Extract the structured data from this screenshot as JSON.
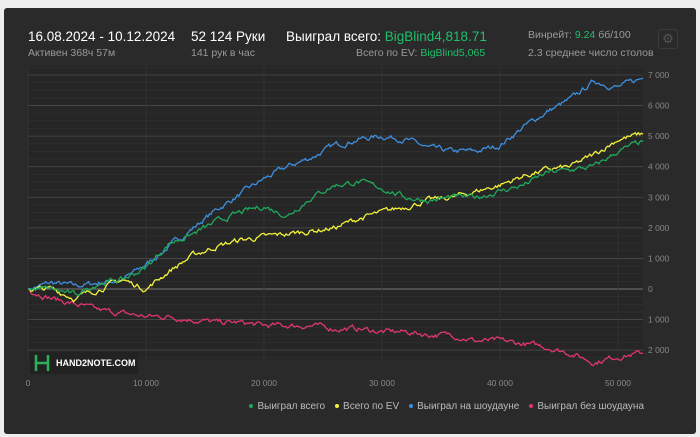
{
  "header": {
    "date_range": "16.08.2024 - 10.12.2024",
    "active": "Активен 368ч 57м",
    "hands": "52 124 Руки",
    "hands_per_hour": "141 рук в час",
    "won_label": "Выиграл всего:",
    "won_value": "BigBlind4,818.71",
    "ev_label": "Всего по EV:",
    "ev_value": "BigBlind5,065",
    "winrate_label": "Винрейт:",
    "winrate_value": "9.24",
    "winrate_unit": "бб/100",
    "tables": "2.3 среднее число столов"
  },
  "logo": "HAND2NOTE.COM",
  "chart_data": {
    "type": "line",
    "x_range": [
      0,
      52124
    ],
    "ylim": [
      -2000,
      7000
    ],
    "x_ticks": [
      {
        "v": 0,
        "l": "0"
      },
      {
        "v": 10000,
        "l": "10 000"
      },
      {
        "v": 20000,
        "l": "20 000"
      },
      {
        "v": 30000,
        "l": "30 000"
      },
      {
        "v": 40000,
        "l": "40 000"
      },
      {
        "v": 50000,
        "l": "50 000"
      }
    ],
    "y_ticks": [
      {
        "v": 7000,
        "l": "7 000"
      },
      {
        "v": 6000,
        "l": "6 000"
      },
      {
        "v": 5000,
        "l": "5 000"
      },
      {
        "v": 4000,
        "l": "4 000"
      },
      {
        "v": 3000,
        "l": "3 000"
      },
      {
        "v": 2000,
        "l": "2 000"
      },
      {
        "v": 1000,
        "l": "1 000"
      },
      {
        "v": 0,
        "l": "0"
      },
      {
        "v": -1000,
        "l": "1 000"
      },
      {
        "v": -2000,
        "l": "2 000"
      }
    ],
    "x": [
      0,
      2000,
      4000,
      6000,
      8000,
      10000,
      12000,
      14000,
      16000,
      18000,
      20000,
      22000,
      24000,
      26000,
      28000,
      30000,
      32000,
      34000,
      36000,
      38000,
      40000,
      42000,
      44000,
      46000,
      48000,
      50000,
      52124
    ],
    "series": [
      {
        "name": "Выиграл на шоудауне",
        "color": "#3d8fe0",
        "values": [
          0,
          200,
          100,
          200,
          300,
          800,
          1400,
          2000,
          2600,
          3100,
          3600,
          4000,
          4300,
          4700,
          4900,
          5000,
          4900,
          4600,
          4500,
          4500,
          4700,
          5300,
          5800,
          6200,
          6800,
          6600,
          6900
        ]
      },
      {
        "name": "Выиграл без шоудауна",
        "color": "#e0366e",
        "values": [
          0,
          -300,
          -500,
          -700,
          -800,
          -900,
          -900,
          -1000,
          -1100,
          -1100,
          -1200,
          -1200,
          -1200,
          -1300,
          -1300,
          -1400,
          -1400,
          -1500,
          -1500,
          -1700,
          -1700,
          -1800,
          -1900,
          -2100,
          -2400,
          -2200,
          -2100
        ]
      },
      {
        "name": "Всего по EV",
        "color": "#f2f23a",
        "values": [
          0,
          0,
          -300,
          0,
          300,
          0,
          600,
          1100,
          1400,
          1600,
          1700,
          1800,
          1900,
          2000,
          2300,
          2500,
          2700,
          2900,
          3000,
          3200,
          3400,
          3700,
          3900,
          4000,
          4400,
          4900,
          5065
        ]
      },
      {
        "name": "Выиграл всего",
        "color": "#1fa85c",
        "values": [
          0,
          0,
          -200,
          200,
          300,
          700,
          1500,
          1800,
          2200,
          2500,
          2700,
          2400,
          3000,
          3400,
          3500,
          3300,
          3000,
          2900,
          3000,
          3000,
          3200,
          3400,
          3800,
          3900,
          4000,
          4500,
          4819
        ]
      }
    ],
    "legend": [
      "Выиграл всего",
      "Всего по EV",
      "Выиграл на шоудауне",
      "Выиграл без шоудауна"
    ],
    "legend_colors": [
      "#1fa85c",
      "#f2f23a",
      "#3d8fe0",
      "#e0366e"
    ]
  }
}
